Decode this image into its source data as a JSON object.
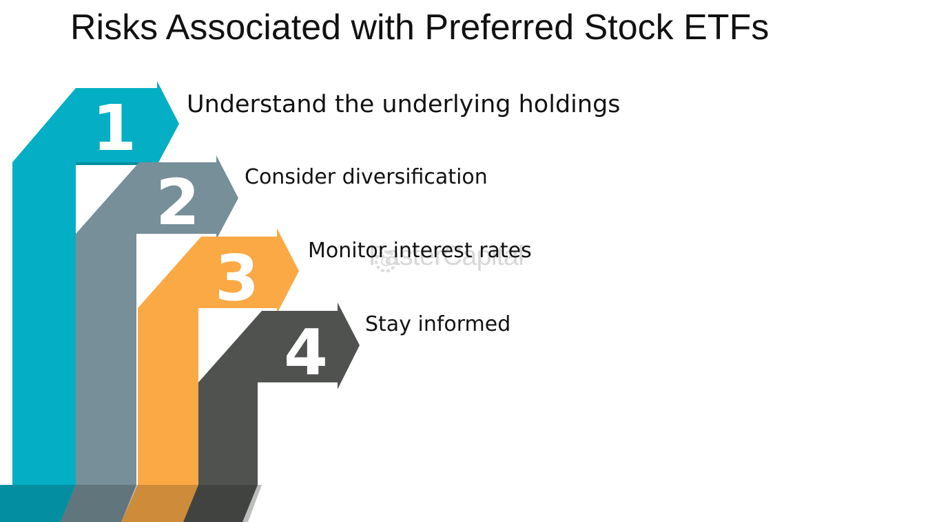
{
  "title": "Risks Associated with Preferred Stock ETFs",
  "watermark": "FasterCapital",
  "colors": {
    "step1": "#04aec4",
    "step2": "#768f99",
    "step3": "#fba945",
    "step4": "#4f524f"
  },
  "steps": [
    {
      "number": "1",
      "label": "Understand the underlying holdings"
    },
    {
      "number": "2",
      "label": "Consider diversification"
    },
    {
      "number": "3",
      "label": "Monitor interest rates"
    },
    {
      "number": "4",
      "label": "Stay informed"
    }
  ]
}
